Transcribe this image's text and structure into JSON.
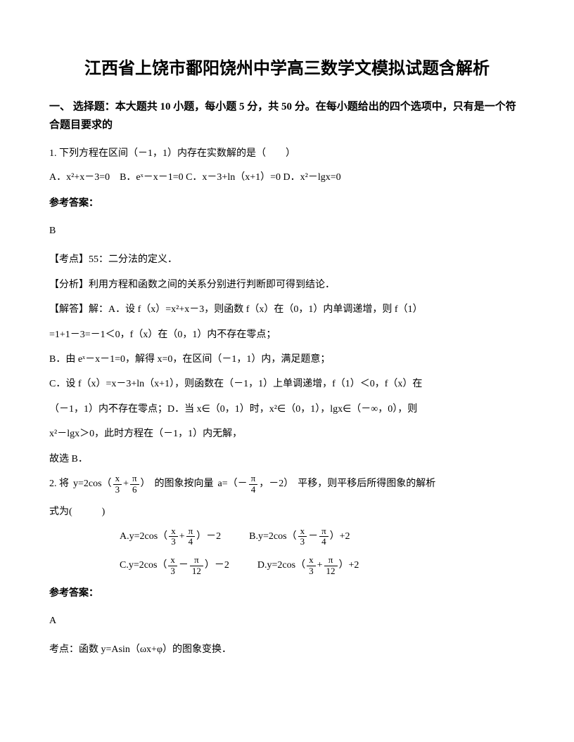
{
  "title": "江西省上饶市鄱阳饶州中学高三数学文模拟试题含解析",
  "section_heading": "一、 选择题：本大题共 10 小题，每小题 5 分，共 50 分。在每小题给出的四个选项中，只有是一个符合题目要求的",
  "q1": {
    "stem": "1. 下列方程在区间（－1，1）内存在实数解的是（　　）",
    "options": "A．x²+x－3=0　B．eˣ－x－1=0 C．x－3+ln（x+1）=0 D．x²－lgx=0",
    "answer_label": "参考答案：",
    "answer": "B",
    "point": "【考点】55：二分法的定义．",
    "analysis": "【分析】利用方程和函数之间的关系分别进行判断即可得到结论．",
    "solve1": "【解答】解：A．设 f（x）=x²+x－3，则函数 f（x）在（0，1）内单调递增，则 f（1）",
    "solve2": "=1+1－3=－1＜0，f（x）在（0，1）内不存在零点；",
    "solve3": "B．由 eˣ－x－1=0，解得 x=0，在区间（－1，1）内，满足题意；",
    "solve4": "C．设 f（x）=x－3+ln（x+1），则函数在（－1，1）上单调递增，f（1）＜0，f（x）在",
    "solve5": "（－1，1）内不存在零点；D．当 x∈（0，1）时，x²∈（0，1），lgx∈（－∞，0），则",
    "solve6": "x²－lgx＞0，此时方程在（－1，1）内无解，",
    "solve7": "故选 B．"
  },
  "q2": {
    "prefix": "2. 将",
    "mid1": "的图象按向量",
    "mid2": "平移，则平移后所得图象的解析",
    "suffix": "式为(　　　)",
    "answer_label": "参考答案：",
    "answer": "A",
    "point": "考点：函数 y=Asin（ωx+φ）的图象变换．",
    "optA": "A.",
    "optB": "B.",
    "optC": "C.",
    "optD": "D."
  }
}
